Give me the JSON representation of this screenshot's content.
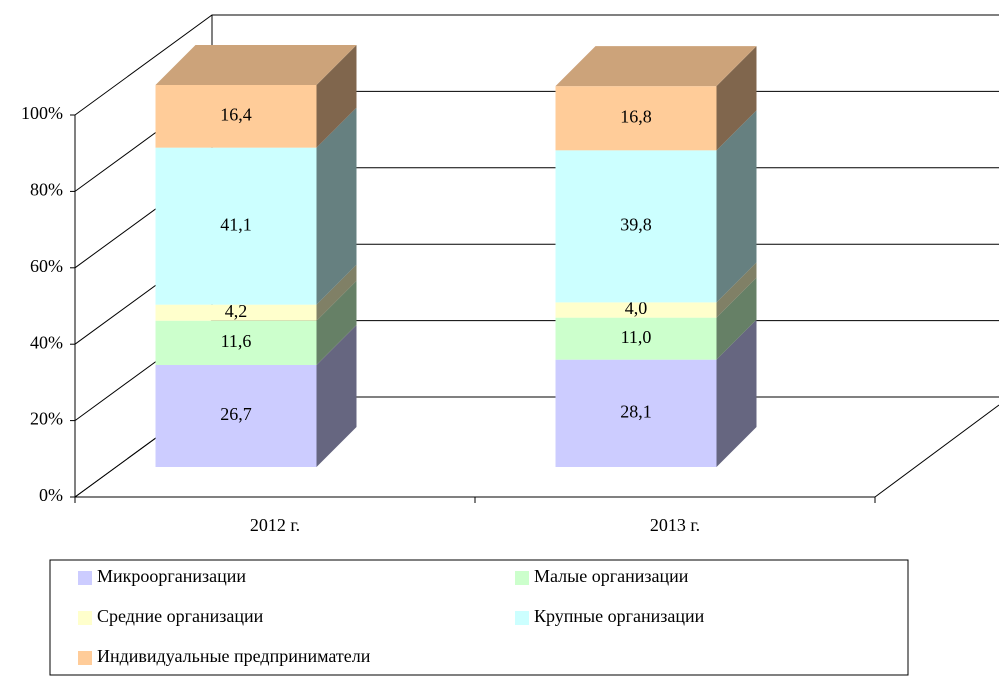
{
  "chart_data": {
    "type": "bar3d_stacked",
    "categories": [
      "2012 г.",
      "2013 г."
    ],
    "series": [
      {
        "name": "Микроорганизации",
        "color": "#ccccff",
        "values": [
          26.7,
          28.1
        ],
        "value_labels": [
          "26,7",
          "28,1"
        ]
      },
      {
        "name": "Малые организации",
        "color": "#ccffcc",
        "values": [
          11.6,
          11.0
        ],
        "value_labels": [
          "11,6",
          "11,0"
        ]
      },
      {
        "name": "Средние организации",
        "color": "#ffffcc",
        "values": [
          4.2,
          4.0
        ],
        "value_labels": [
          "4,2",
          "4,0"
        ]
      },
      {
        "name": "Крупные организации",
        "color": "#ccffff",
        "values": [
          41.1,
          39.8
        ],
        "value_labels": [
          "41,1",
          "39,8"
        ]
      },
      {
        "name": "Индивидуальные предприниматели",
        "color": "#ffcc99",
        "values": [
          16.4,
          16.8
        ],
        "value_labels": [
          "16,4",
          "16,8"
        ]
      }
    ],
    "ylim": [
      0,
      100
    ],
    "yticks": [
      {
        "value": 0,
        "label": "0%"
      },
      {
        "value": 20,
        "label": "20%"
      },
      {
        "value": 40,
        "label": "40%"
      },
      {
        "value": 60,
        "label": "60%"
      },
      {
        "value": 80,
        "label": "80%"
      },
      {
        "value": 100,
        "label": "100%"
      }
    ],
    "grid": true,
    "legend": "bottom"
  }
}
